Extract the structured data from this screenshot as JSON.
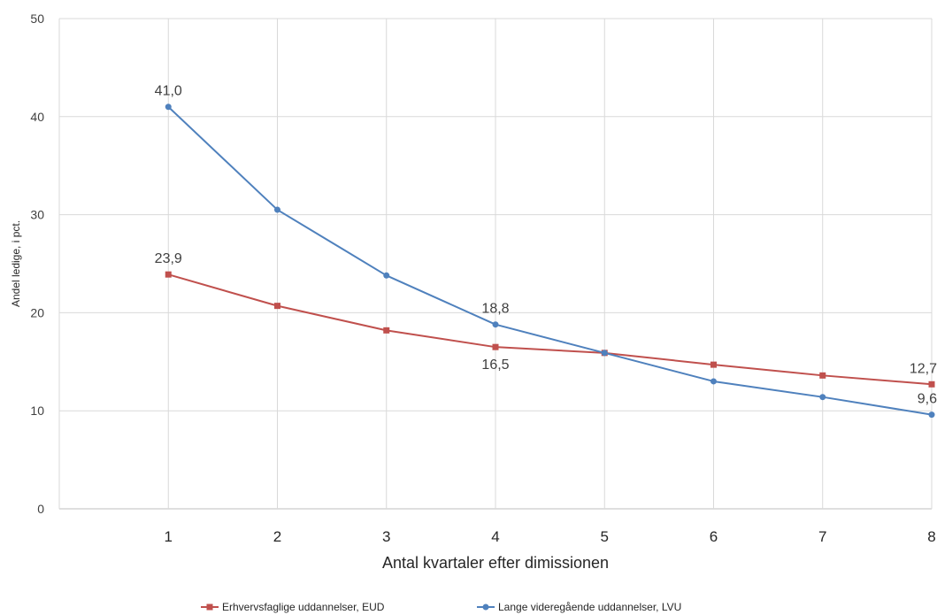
{
  "chart_data": {
    "type": "line",
    "title": "",
    "xlabel": "Antal kvartaler efter dimissionen",
    "ylabel": "Andel ledige, i pct.",
    "categories": [
      "1",
      "2",
      "3",
      "4",
      "5",
      "6",
      "7",
      "8"
    ],
    "ylim": [
      0,
      50
    ],
    "yticks": [
      "0",
      "10",
      "20",
      "30",
      "40",
      "50"
    ],
    "grid": true,
    "legend_position": "bottom",
    "series": [
      {
        "name": "Erhvervsfaglige uddannelser, EUD",
        "color": "#c0504d",
        "marker": "square",
        "values": [
          23.9,
          20.7,
          18.2,
          16.5,
          15.9,
          14.7,
          13.6,
          12.7
        ],
        "labels": [
          {
            "index": 0,
            "text": "23,9",
            "placement": "above"
          },
          {
            "index": 3,
            "text": "16,5",
            "placement": "below"
          },
          {
            "index": 7,
            "text": "12,7",
            "placement": "above"
          }
        ]
      },
      {
        "name": "Lange videregående uddannelser, LVU",
        "color": "#4f81bd",
        "marker": "circle",
        "values": [
          41.0,
          30.5,
          23.8,
          18.8,
          15.9,
          13.0,
          11.4,
          9.6
        ],
        "labels": [
          {
            "index": 0,
            "text": "41,0",
            "placement": "above"
          },
          {
            "index": 3,
            "text": "18,8",
            "placement": "above"
          },
          {
            "index": 7,
            "text": "9,6",
            "placement": "above"
          }
        ]
      }
    ]
  }
}
